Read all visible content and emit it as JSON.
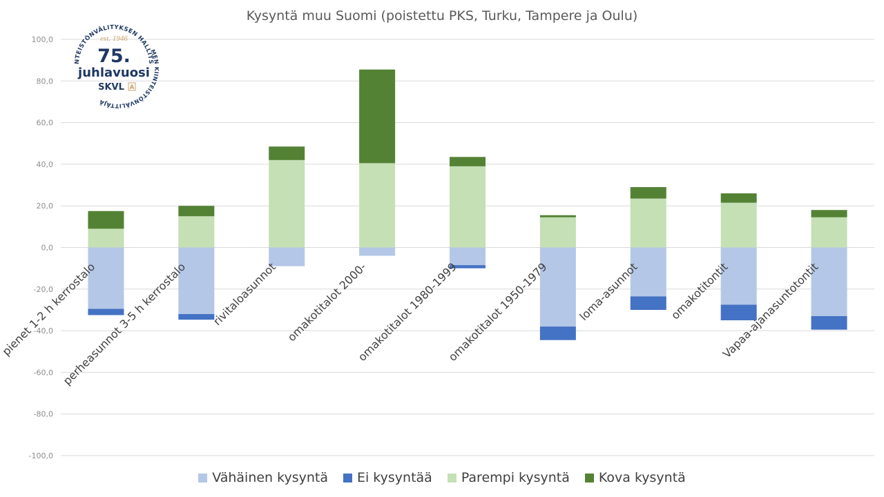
{
  "chart_data": {
    "type": "bar",
    "stacked": true,
    "title": "Kysyntä muu Suomi (poistettu PKS, Turku, Tampere ja Oulu)",
    "categories": [
      "pienet 1-2 h kerrostalo",
      "perheasunnot 3-5 h kerrostalo",
      "rivitaloasunnot",
      "omakotitalot 2000-",
      "omakotitalot 1980-1999",
      "omakotitalot 1950-1979",
      "loma-asunnot",
      "omakotitontit",
      "Vapaa-ajanasuntotontit"
    ],
    "series": [
      {
        "name": "Vähäinen kysyntä",
        "color": "#b4c7e7",
        "values": [
          -29.5,
          -32,
          -9,
          -4,
          -8.5,
          -38,
          -23.5,
          -27.5,
          -33
        ],
        "direction": "negative"
      },
      {
        "name": "Ei kysyntää",
        "color": "#4472c4",
        "values": [
          -3,
          -2.7,
          0,
          0,
          -1.5,
          -6.5,
          -6.5,
          -7.5,
          -6.5
        ],
        "direction": "negative"
      },
      {
        "name": "Parempi kysyntä",
        "color": "#c5e0b4",
        "values": [
          9,
          15,
          42,
          40.5,
          39,
          14.5,
          23.5,
          21.5,
          14.5
        ],
        "direction": "positive"
      },
      {
        "name": "Kova kysyntä",
        "color": "#548235",
        "values": [
          8.5,
          5,
          6.5,
          45,
          4.5,
          1,
          5.5,
          4.5,
          3.5
        ],
        "direction": "positive"
      }
    ],
    "y_ticks": [
      "100,0",
      "80,0",
      "60,0",
      "40,0",
      "20,0",
      "0,0",
      "-20,0",
      "-40,0",
      "-60,0",
      "-80,0",
      "-100,0"
    ],
    "ylim": [
      -100,
      100
    ],
    "grid": true,
    "legend_position": "bottom"
  },
  "logo": {
    "arc_top": "KIINTEISTÖNVÄLITYKSEN HALLITSIJA",
    "arc_right": "SUOMEN KIINTEISTÖNVÄLITTÄJÄT RY",
    "est": "est. 1946",
    "number": "75.",
    "word": "juhlavuosi",
    "brand": "SKVL",
    "brand_mark": "A",
    "text_color": "#1f3864",
    "accent_color": "#c9a36b"
  }
}
